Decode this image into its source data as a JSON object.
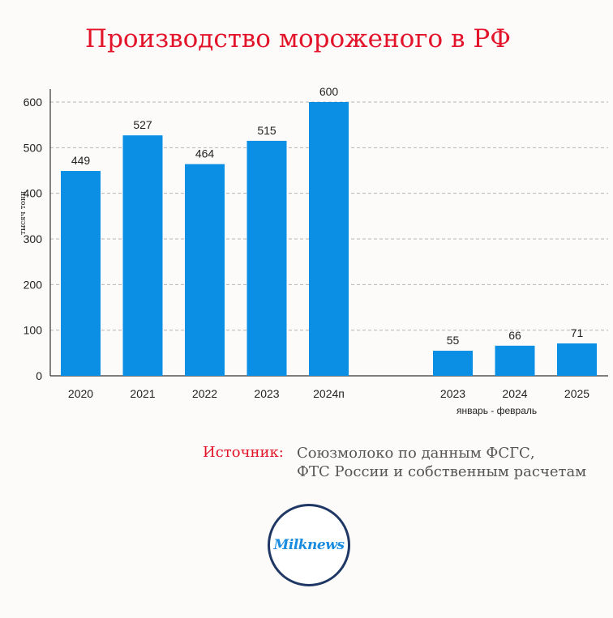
{
  "title": "Производство мороженого в РФ",
  "colors": {
    "bar": "#0a8fe4",
    "title": "#e3132a",
    "source_label": "#e3132a"
  },
  "chart_data": {
    "type": "bar",
    "ylabel": "тысяч тонн",
    "ylim": [
      0,
      600
    ],
    "yticks": [
      0,
      100,
      200,
      300,
      400,
      500,
      600
    ],
    "grid": true,
    "groups": [
      {
        "name": "",
        "categories": [
          "2020",
          "2021",
          "2022",
          "2023",
          "2024п"
        ],
        "values": [
          449,
          527,
          464,
          515,
          600
        ]
      },
      {
        "name": "январь - февраль",
        "categories": [
          "2023",
          "2024",
          "2025"
        ],
        "values": [
          55,
          66,
          71
        ]
      }
    ]
  },
  "source": {
    "label": "Источник:",
    "line1": "Союзмолоко по данным ФСГС,",
    "line2": "ФТС России и собственным расчетам"
  },
  "logo_text": "Milknews"
}
